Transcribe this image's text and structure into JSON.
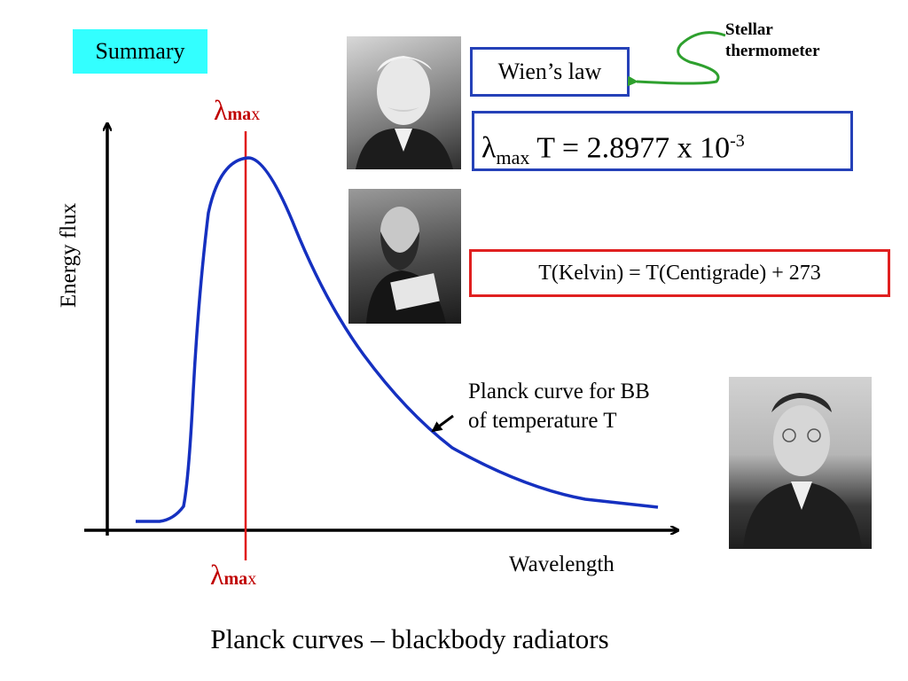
{
  "badge": {
    "text": "Summary"
  },
  "wien": {
    "label": "Wien’s law"
  },
  "formula": {
    "lambda": "λ",
    "sub": "max",
    "mid": " T = 2.8977 x 10",
    "sup": "-3"
  },
  "kelvin": {
    "text": "T(Kelvin) = T(Centigrade) + 273"
  },
  "stellar": {
    "line1": "Stellar",
    "line2": "thermometer"
  },
  "planck_note": {
    "line1": "Planck curve for BB",
    "line2": "of temperature T"
  },
  "axes": {
    "x": "Wavelength",
    "y": "Energy flux"
  },
  "lambda_max": {
    "symbol": "λ",
    "bold": "ma",
    "normal": "x"
  },
  "caption": "Planck curves – blackbody radiators",
  "colors": {
    "curve": "#1530c0",
    "marker": "#e01818",
    "axis": "#000000",
    "arrow_green": "#2ea02e"
  }
}
